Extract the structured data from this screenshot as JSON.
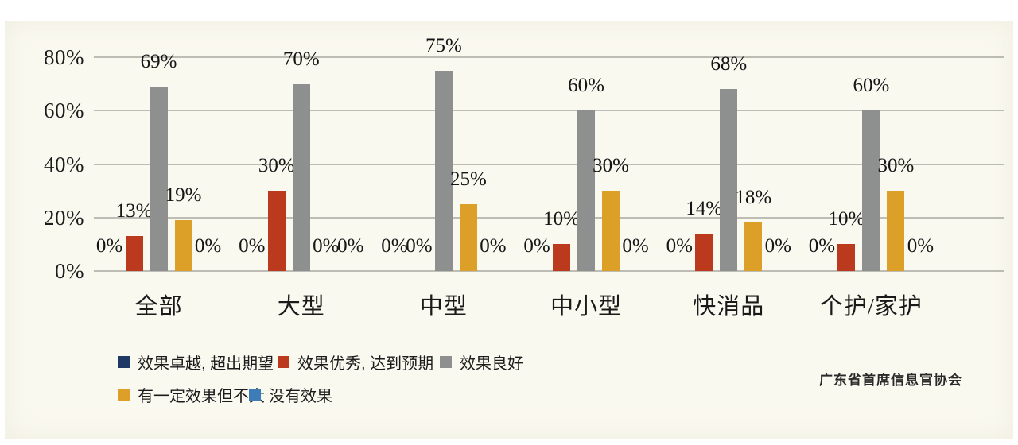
{
  "chart_data": {
    "type": "bar",
    "title": "",
    "categories": [
      "全部",
      "大型",
      "中型",
      "中小型",
      "快消品",
      "个护/家护"
    ],
    "series": [
      {
        "name": "效果卓越, 超出期望",
        "color": "#1f3864",
        "values": [
          0,
          0,
          0,
          0,
          0,
          0
        ]
      },
      {
        "name": "效果优秀, 达到预期",
        "color": "#bb3a1d",
        "values": [
          13,
          30,
          0,
          10,
          14,
          10
        ]
      },
      {
        "name": "效果良好",
        "color": "#8d908e",
        "values": [
          69,
          70,
          75,
          60,
          68,
          60
        ]
      },
      {
        "name": "有一定效果但不大",
        "color": "#dc9f28",
        "values": [
          19,
          0,
          25,
          30,
          18,
          30
        ]
      },
      {
        "name": "没有效果",
        "color": "#3e7cb8",
        "values": [
          0,
          0,
          0,
          0,
          0,
          0
        ]
      }
    ],
    "value_suffix": "%",
    "ylim": [
      0,
      80
    ],
    "yticks": [
      "0%",
      "20%",
      "40%",
      "60%",
      "80%"
    ],
    "grid": true,
    "data_labels": true,
    "legend_position": "bottom-left"
  },
  "credit": "广东省首席信息官协会"
}
